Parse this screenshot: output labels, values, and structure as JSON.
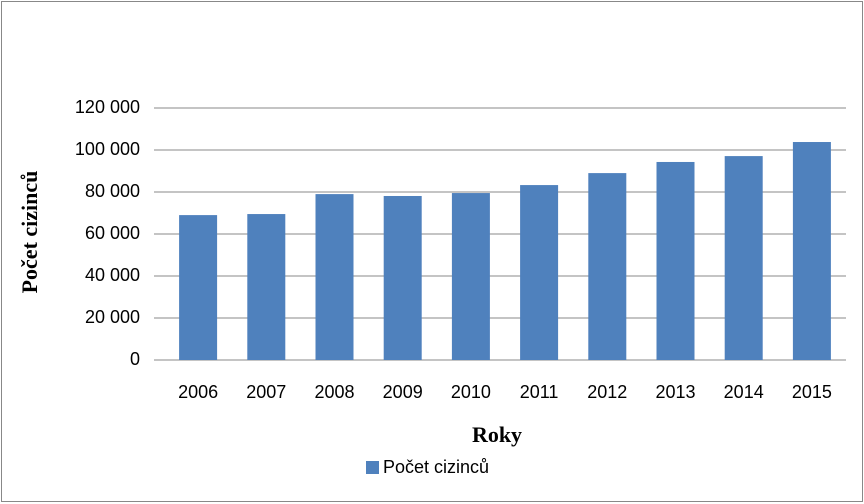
{
  "chart_data": {
    "type": "bar",
    "x_label": "Roky",
    "y_label": "Počet cizinců",
    "categories": [
      "2006",
      "2007",
      "2008",
      "2009",
      "2010",
      "2011",
      "2012",
      "2013",
      "2014",
      "2015"
    ],
    "series": [
      {
        "name": "Počet cizinců",
        "color": "#4f81bd",
        "values": [
          69000,
          69500,
          79000,
          78100,
          79500,
          83300,
          89000,
          94300,
          97100,
          103800
        ]
      }
    ],
    "ylim": [
      0,
      120000
    ],
    "yticks": [
      0,
      {
        "value": 20000,
        "label": "20 000"
      },
      {
        "value": 40000,
        "label": "40 000"
      },
      {
        "value": 60000,
        "label": "60 000"
      },
      {
        "value": 80000,
        "label": "80 000"
      },
      {
        "value": 100000,
        "label": "100 000"
      },
      {
        "value": 120000,
        "label": "120 000"
      }
    ],
    "grid": true,
    "legend": "bottom"
  }
}
